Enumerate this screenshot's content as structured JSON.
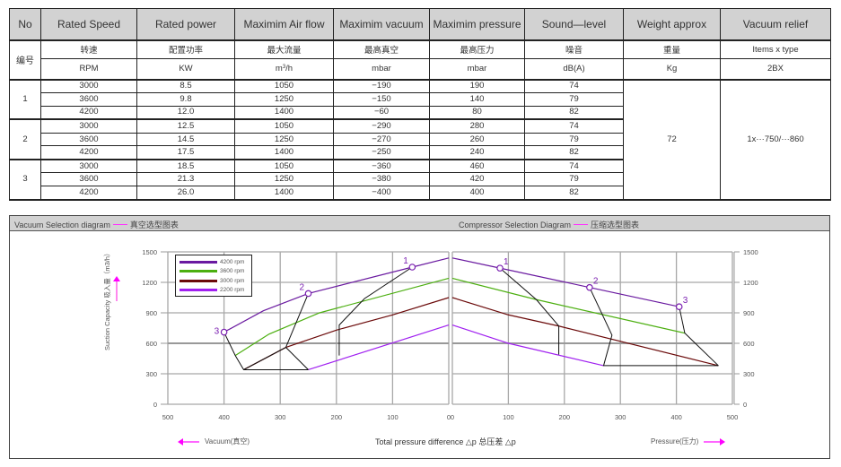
{
  "table": {
    "headers": [
      "No",
      "Rated Speed",
      "Rated power",
      "Maximim Air flow",
      "Maximim vacuum",
      "Maximim pressure",
      "Sound—level",
      "Weight approx",
      "Vacuum relief"
    ],
    "no_cn": "编号",
    "cn_row": [
      "转速",
      "配置功率",
      "最大流量",
      "最高真空",
      "最高压力",
      "噪音",
      "重量",
      "Items x type"
    ],
    "unit_row": [
      "RPM",
      "KW",
      "m3/h",
      "mbar",
      "mbar",
      "dB(A)",
      "Kg",
      "2BX"
    ],
    "airflow_unit_base": "m",
    "airflow_unit_sup": "3",
    "airflow_unit_tail": "/h",
    "groups": [
      {
        "no": "1",
        "rows": [
          {
            "speed": "3000",
            "power": "8.5",
            "airflow": "1050",
            "vacuum": "−190",
            "pressure": "190",
            "sound": "74"
          },
          {
            "speed": "3600",
            "power": "9.8",
            "airflow": "1250",
            "vacuum": "−150",
            "pressure": "140",
            "sound": "79"
          },
          {
            "speed": "4200",
            "power": "12.0",
            "airflow": "1400",
            "vacuum": "−60",
            "pressure": "80",
            "sound": "82"
          }
        ]
      },
      {
        "no": "2",
        "rows": [
          {
            "speed": "3000",
            "power": "12.5",
            "airflow": "1050",
            "vacuum": "−290",
            "pressure": "280",
            "sound": "74"
          },
          {
            "speed": "3600",
            "power": "14.5",
            "airflow": "1250",
            "vacuum": "−270",
            "pressure": "260",
            "sound": "79"
          },
          {
            "speed": "4200",
            "power": "17.5",
            "airflow": "1400",
            "vacuum": "−250",
            "pressure": "240",
            "sound": "82"
          }
        ]
      },
      {
        "no": "3",
        "rows": [
          {
            "speed": "3000",
            "power": "18.5",
            "airflow": "1050",
            "vacuum": "−360",
            "pressure": "460",
            "sound": "74"
          },
          {
            "speed": "3600",
            "power": "21.3",
            "airflow": "1250",
            "vacuum": "−380",
            "pressure": "420",
            "sound": "79"
          },
          {
            "speed": "4200",
            "power": "26.0",
            "airflow": "1400",
            "vacuum": "−400",
            "pressure": "400",
            "sound": "82"
          }
        ]
      }
    ],
    "weight": "72",
    "vacuum_relief": "1x···750/···860"
  },
  "chart_section": {
    "left_title_en": "Vacuum Selection diagram",
    "left_title_cn": "真空选型图表",
    "right_title_en": "Compressor Selection Diagram",
    "right_title_cn": "压缩选型图表",
    "ylabel": "Suction Capacity 吸入量（m3/h）",
    "xlabel": "Total pressure difference △p 总压差 △p",
    "vacuum_note": "Vacuum(真空)",
    "pressure_note": "Pressure(压力)",
    "accent_color": "#ff00ff"
  },
  "chart_data": [
    {
      "type": "line",
      "title": "Vacuum Selection diagram — 真空选型图表",
      "xlabel": "Vacuum(真空) — Total pressure difference Δp",
      "ylabel": "Suction Capacity 吸入量 (m3/h)",
      "xlim": [
        500,
        0
      ],
      "ylim": [
        0,
        1500
      ],
      "xticks": [
        500,
        400,
        300,
        200,
        100,
        0
      ],
      "yticks": [
        0,
        300,
        600,
        900,
        1200,
        1500
      ],
      "grid": true,
      "legend_position": "upper-left",
      "series": [
        {
          "name": "4200 rpm",
          "color": "#6a1aa0",
          "points": [
            [
              400,
              710
            ],
            [
              330,
              920
            ],
            [
              250,
              1090
            ],
            [
              65,
              1350
            ],
            [
              0,
              1440
            ]
          ]
        },
        {
          "name": "3600 rpm",
          "color": "#4caf10",
          "points": [
            [
              380,
              480
            ],
            [
              320,
              690
            ],
            [
              230,
              900
            ],
            [
              0,
              1240
            ]
          ]
        },
        {
          "name": "3000 rpm",
          "color": "#6b0a0a",
          "points": [
            [
              365,
              340
            ],
            [
              290,
              560
            ],
            [
              200,
              730
            ],
            [
              100,
              880
            ],
            [
              0,
              1050
            ]
          ]
        },
        {
          "name": "2200 rpm",
          "color": "#a020f0",
          "points": [
            [
              250,
              340
            ],
            [
              0,
              780
            ]
          ]
        }
      ],
      "envelopes": [
        {
          "label": "1",
          "points": [
            [
              65,
              1350
            ],
            [
              150,
              1040
            ],
            [
              195,
              780
            ],
            [
              195,
              480
            ]
          ]
        },
        {
          "label": "2",
          "points": [
            [
              250,
              1090
            ],
            [
              290,
              560
            ],
            [
              250,
              340
            ]
          ]
        },
        {
          "label": "3",
          "points": [
            [
              400,
              710
            ],
            [
              380,
              480
            ],
            [
              365,
              340
            ],
            [
              250,
              340
            ]
          ]
        },
        {
          "label": "",
          "points": [
            [
              290,
              560
            ],
            [
              365,
              340
            ]
          ]
        }
      ],
      "markers": [
        {
          "label": "1",
          "x": 65,
          "y": 1350
        },
        {
          "label": "2",
          "x": 250,
          "y": 1090
        },
        {
          "label": "3",
          "x": 400,
          "y": 710
        }
      ]
    },
    {
      "type": "line",
      "title": "Compressor Selection Diagram — 压缩选型图表",
      "xlabel": "Pressure(压力) — Total pressure difference Δp",
      "ylabel": "Suction Capacity (m3/h)",
      "xlim": [
        0,
        500
      ],
      "ylim": [
        0,
        1500
      ],
      "xticks": [
        0,
        100,
        200,
        300,
        400,
        500
      ],
      "yticks": [
        0,
        300,
        600,
        900,
        1200,
        1500
      ],
      "grid": true,
      "series": [
        {
          "name": "4200 rpm",
          "color": "#6a1aa0",
          "points": [
            [
              0,
              1440
            ],
            [
              85,
              1340
            ],
            [
              245,
              1150
            ],
            [
              405,
              960
            ]
          ]
        },
        {
          "name": "3600 rpm",
          "color": "#4caf10",
          "points": [
            [
              0,
              1240
            ],
            [
              150,
              1030
            ],
            [
              415,
              700
            ]
          ]
        },
        {
          "name": "3000 rpm",
          "color": "#6b0a0a",
          "points": [
            [
              0,
              1050
            ],
            [
              100,
              880
            ],
            [
              190,
              770
            ],
            [
              475,
              380
            ]
          ]
        },
        {
          "name": "2200 rpm",
          "color": "#a020f0",
          "points": [
            [
              0,
              780
            ],
            [
              100,
              600
            ],
            [
              270,
              380
            ]
          ]
        }
      ],
      "envelopes": [
        {
          "label": "1",
          "points": [
            [
              85,
              1340
            ],
            [
              150,
              1030
            ],
            [
              190,
              770
            ],
            [
              190,
              490
            ]
          ]
        },
        {
          "label": "2",
          "points": [
            [
              245,
              1150
            ],
            [
              285,
              680
            ],
            [
              270,
              380
            ],
            [
              475,
              380
            ]
          ]
        },
        {
          "label": "3",
          "points": [
            [
              405,
              960
            ],
            [
              415,
              700
            ],
            [
              475,
              380
            ]
          ]
        }
      ],
      "markers": [
        {
          "label": "1",
          "x": 85,
          "y": 1340
        },
        {
          "label": "2",
          "x": 245,
          "y": 1150
        },
        {
          "label": "3",
          "x": 405,
          "y": 960
        }
      ]
    }
  ]
}
